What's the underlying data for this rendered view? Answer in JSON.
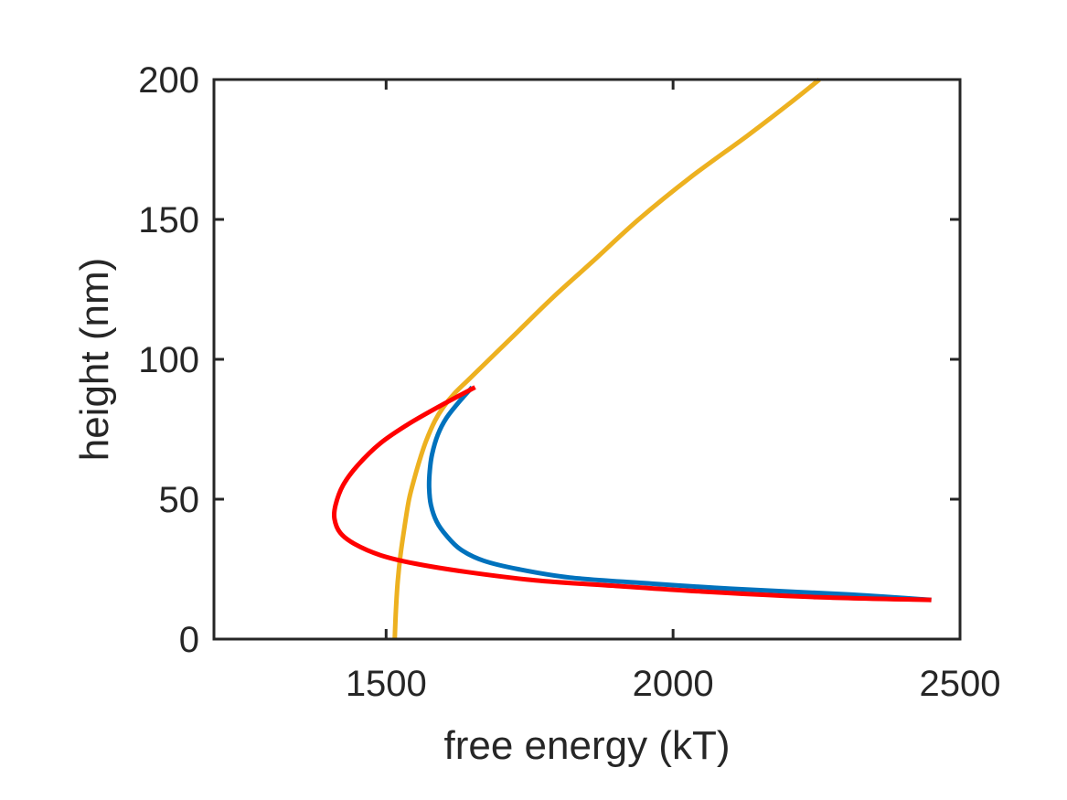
{
  "chart_data": {
    "type": "line",
    "title": "",
    "xlabel": "free energy (kT)",
    "ylabel": "height (nm)",
    "xlim": [
      1200,
      2500
    ],
    "ylim": [
      0,
      200
    ],
    "xticks": [
      1500,
      2000,
      2500
    ],
    "yticks": [
      0,
      50,
      100,
      150,
      200
    ],
    "grid": false,
    "box": true,
    "series": [
      {
        "color": "#EDB120",
        "x": [
          1515,
          1517,
          1520,
          1525,
          1532,
          1540,
          1550,
          1560,
          1570,
          1585,
          1600,
          1620,
          1645,
          1680,
          1730,
          1790,
          1860,
          1940,
          2030,
          2130,
          2200,
          2255
        ],
        "y": [
          0,
          10,
          20,
          30,
          40,
          50,
          58,
          65,
          71,
          78,
          83,
          88,
          93,
          100,
          110,
          122,
          135,
          150,
          165,
          180,
          191,
          200
        ]
      },
      {
        "color": "#0072BD",
        "x": [
          1650,
          1628,
          1605,
          1590,
          1580,
          1576,
          1575,
          1578,
          1588,
          1605,
          1630,
          1670,
          1730,
          1820,
          1950,
          2100,
          2300,
          2450
        ],
        "y": [
          90,
          85,
          79,
          73,
          66,
          60,
          54,
          48,
          42,
          37,
          32,
          28,
          25,
          22,
          20,
          18,
          16,
          14
        ]
      },
      {
        "color": "#FF0000",
        "x": [
          1655,
          1600,
          1540,
          1490,
          1450,
          1425,
          1412,
          1410,
          1420,
          1445,
          1490,
          1550,
          1640,
          1760,
          1900,
          2050,
          2250,
          2450
        ],
        "y": [
          90,
          84,
          77,
          70,
          62,
          55,
          48,
          43,
          38,
          34,
          30,
          27,
          24,
          21,
          19,
          17,
          15,
          14
        ]
      }
    ]
  }
}
